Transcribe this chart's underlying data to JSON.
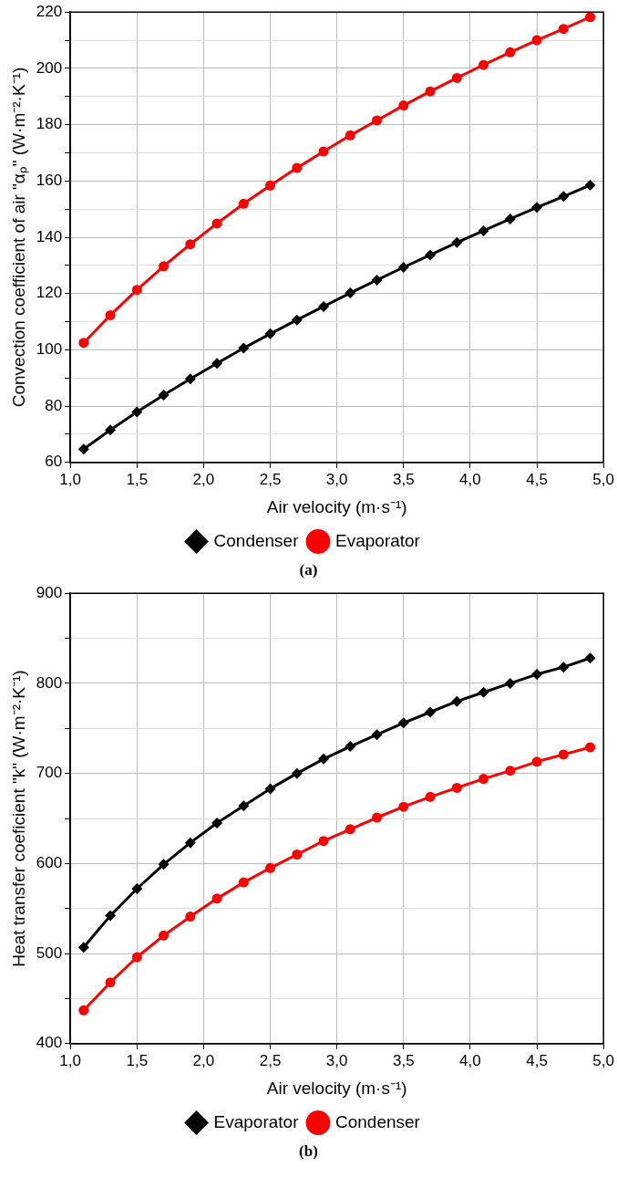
{
  "chart_data": [
    {
      "type": "line",
      "xlabel": "Air velocity (m·s⁻¹)",
      "ylabel": "Convection coefficient of air \"αₚ\" (W·m⁻²·K⁻¹)",
      "annotations": [
        "(a)"
      ],
      "x": [
        1.1,
        1.3,
        1.5,
        1.7,
        1.9,
        2.1,
        2.3,
        2.5,
        2.7,
        2.9,
        3.1,
        3.3,
        3.5,
        3.7,
        3.9,
        4.1,
        4.3,
        4.5,
        4.7,
        4.9
      ],
      "series": [
        {
          "name": "Condenser",
          "color": "#000000",
          "marker": "diamond",
          "values": [
            64.7,
            71.5,
            77.9,
            83.9,
            89.7,
            95.2,
            100.6,
            105.7,
            110.6,
            115.4,
            120.2,
            124.8,
            129.3,
            133.7,
            138.1,
            142.3,
            146.5,
            150.6,
            154.5,
            158.5
          ]
        },
        {
          "name": "Evaporator",
          "color": "#ff0000",
          "marker": "circle",
          "values": [
            102.5,
            112.3,
            121.3,
            129.7,
            137.5,
            144.9,
            151.9,
            158.4,
            164.6,
            170.5,
            176.2,
            181.5,
            186.8,
            191.8,
            196.6,
            201.2,
            205.7,
            210.0,
            214.0,
            218.2
          ]
        }
      ],
      "xlim": [
        1.0,
        5.0
      ],
      "xticks": [
        {
          "value": 1.0,
          "label": "1,0"
        },
        {
          "value": 1.5,
          "label": "1,5"
        },
        {
          "value": 2.0,
          "label": "2,0"
        },
        {
          "value": 2.5,
          "label": "2,5"
        },
        {
          "value": 3.0,
          "label": "3,0"
        },
        {
          "value": 3.5,
          "label": "3,5"
        },
        {
          "value": 4.0,
          "label": "4,0"
        },
        {
          "value": 4.5,
          "label": "4,5"
        },
        {
          "value": 5.0,
          "label": "5,0"
        }
      ],
      "ylim": [
        60,
        220
      ],
      "yticks": [
        60,
        {
          "value": 70,
          "label": null
        },
        80,
        {
          "value": 90,
          "label": null
        },
        100,
        {
          "value": 110,
          "label": null
        },
        120,
        {
          "value": 130,
          "label": null
        },
        140,
        {
          "value": 150,
          "label": null
        },
        160,
        {
          "value": 170,
          "label": null
        },
        180,
        {
          "value": 190,
          "label": null
        },
        200,
        {
          "value": 210,
          "label": null
        },
        220
      ],
      "grid": true,
      "legend": "bottom",
      "line_style": "solid"
    },
    {
      "type": "line",
      "xlabel": "Air velocity (m·s⁻¹)",
      "ylabel": "Heat transfer coeficient \"k\" (W·m⁻²·K⁻¹)",
      "annotations": [
        "(b)"
      ],
      "x": [
        1.1,
        1.3,
        1.5,
        1.7,
        1.9,
        2.1,
        2.3,
        2.5,
        2.7,
        2.9,
        3.1,
        3.3,
        3.5,
        3.7,
        3.9,
        4.1,
        4.3,
        4.5,
        4.7,
        4.9
      ],
      "series": [
        {
          "name": "Evaporator",
          "color": "#000000",
          "marker": "diamond",
          "values": [
            507,
            542,
            572,
            599,
            623,
            645,
            664,
            683,
            700,
            716,
            730,
            743,
            756,
            768,
            780,
            790,
            800,
            810,
            818,
            828
          ]
        },
        {
          "name": "Condenser",
          "color": "#ff0000",
          "marker": "circle",
          "values": [
            437,
            468,
            496,
            520,
            541,
            561,
            579,
            595,
            610,
            625,
            638,
            651,
            663,
            674,
            684,
            694,
            703,
            713,
            721,
            729
          ]
        }
      ],
      "xlim": [
        1.0,
        5.0
      ],
      "xticks": [
        {
          "value": 1.0,
          "label": "1,0"
        },
        {
          "value": 1.5,
          "label": "1,5"
        },
        {
          "value": 2.0,
          "label": "2,0"
        },
        {
          "value": 2.5,
          "label": "2,5"
        },
        {
          "value": 3.0,
          "label": "3,0"
        },
        {
          "value": 3.5,
          "label": "3,5"
        },
        {
          "value": 4.0,
          "label": "4,0"
        },
        {
          "value": 4.5,
          "label": "4,5"
        },
        {
          "value": 5.0,
          "label": "5,0"
        }
      ],
      "ylim": [
        400,
        900
      ],
      "yticks": [
        400,
        {
          "value": 450,
          "label": null
        },
        500,
        {
          "value": 550,
          "label": null
        },
        600,
        {
          "value": 650,
          "label": null
        },
        700,
        {
          "value": 750,
          "label": null
        },
        800,
        {
          "value": 850,
          "label": null
        },
        900
      ],
      "grid": true,
      "legend": "bottom",
      "line_style": "solid"
    }
  ]
}
